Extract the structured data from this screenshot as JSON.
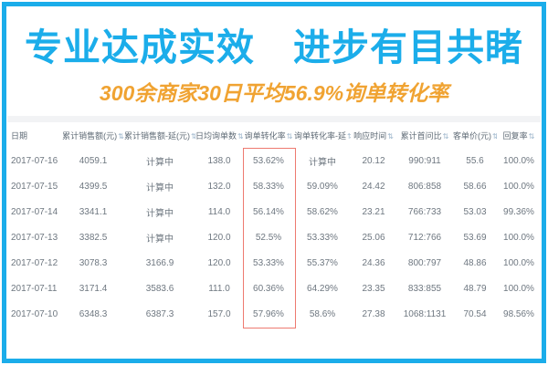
{
  "frame_color": "#1badea",
  "banner": {
    "title": "专业达成实效　进步有目共睹",
    "title_color": "#1badea",
    "subtitle": "300余商家30日平均56.9%询单转化率",
    "subtitle_color": "#f0a332"
  },
  "table": {
    "sort_icon": "⇅",
    "highlight_color": "#ee7a70",
    "highlighted_column_index": 4,
    "columns": [
      {
        "label": "日期",
        "sortable": false
      },
      {
        "label": "累计销售额(元)",
        "sortable": true
      },
      {
        "label": "累计销售额-延(元)",
        "sortable": true
      },
      {
        "label": "日均询单数",
        "sortable": true
      },
      {
        "label": "询单转化率",
        "sortable": true
      },
      {
        "label": "询单转化率-延",
        "sortable": true
      },
      {
        "label": "响应时间",
        "sortable": true
      },
      {
        "label": "累计首问比",
        "sortable": true
      },
      {
        "label": "客单价(元)",
        "sortable": true
      },
      {
        "label": "回复率",
        "sortable": true
      }
    ],
    "rows": [
      [
        "2017-07-16",
        "4059.1",
        "计算中",
        "138.0",
        "53.62%",
        "计算中",
        "20.12",
        "990:911",
        "55.6",
        "100.0%"
      ],
      [
        "2017-07-15",
        "4399.5",
        "计算中",
        "132.0",
        "58.33%",
        "59.09%",
        "24.42",
        "806:858",
        "58.66",
        "100.0%"
      ],
      [
        "2017-07-14",
        "3341.1",
        "计算中",
        "114.0",
        "56.14%",
        "58.62%",
        "23.21",
        "766:733",
        "53.03",
        "99.36%"
      ],
      [
        "2017-07-13",
        "3382.5",
        "计算中",
        "120.0",
        "52.5%",
        "53.33%",
        "25.06",
        "712:766",
        "53.69",
        "100.0%"
      ],
      [
        "2017-07-12",
        "3078.3",
        "3166.9",
        "120.0",
        "53.33%",
        "55.37%",
        "24.36",
        "800:797",
        "48.86",
        "100.0%"
      ],
      [
        "2017-07-11",
        "3171.4",
        "3583.6",
        "111.0",
        "60.36%",
        "64.29%",
        "23.35",
        "833:855",
        "48.79",
        "100.0%"
      ],
      [
        "2017-07-10",
        "6348.3",
        "6387.3",
        "157.0",
        "57.96%",
        "58.6%",
        "27.38",
        "1068:1131",
        "70.54",
        "98.56%"
      ]
    ]
  }
}
